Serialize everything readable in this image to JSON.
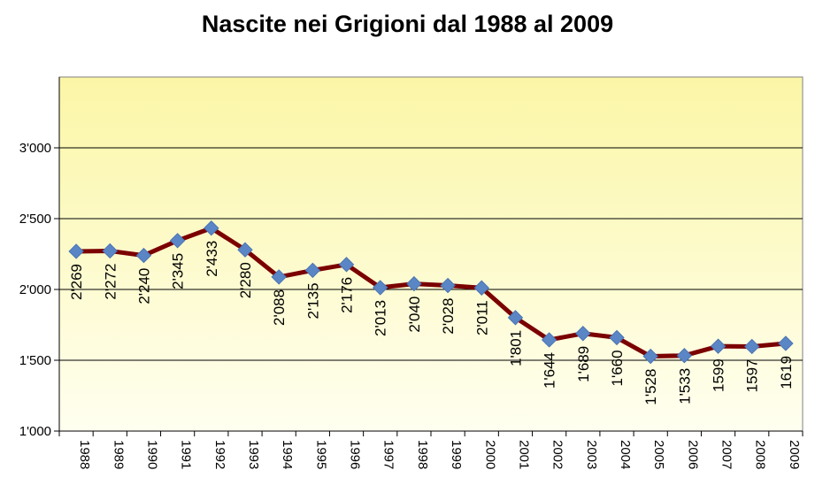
{
  "chart_data": {
    "type": "line",
    "title": "Nascite nei Grigioni dal 1988 al 2009",
    "xlabel": "",
    "ylabel": "",
    "x": [
      "1988",
      "1989",
      "1990",
      "1991",
      "1992",
      "1993",
      "1994",
      "1995",
      "1996",
      "1997",
      "1998",
      "1999",
      "2000",
      "2001",
      "2002",
      "2003",
      "2004",
      "2005",
      "2006",
      "2007",
      "2008",
      "2009"
    ],
    "series": [
      {
        "values": [
          2269,
          2272,
          2240,
          2345,
          2433,
          2280,
          2088,
          2135,
          2176,
          2013,
          2040,
          2028,
          2011,
          1801,
          1644,
          1689,
          1660,
          1528,
          1533,
          1599,
          1597,
          1619
        ],
        "data_labels": [
          "2'269",
          "2'272",
          "2'240",
          "2'345",
          "2'433",
          "2'280",
          "2'088",
          "2'135",
          "2'176",
          "2'013",
          "2'040",
          "2'028",
          "2'011",
          "1'801",
          "1'644",
          "1'689",
          "1'660",
          "1'528",
          "1'533",
          "1599",
          "1597",
          "1619"
        ]
      }
    ],
    "ylim": [
      1000,
      3500
    ],
    "yticks": [
      1000,
      1500,
      2000,
      2500,
      3000
    ],
    "ytick_labels": [
      "1'000",
      "1'500",
      "2'000",
      "2'500",
      "3'000"
    ],
    "grid": true,
    "colors": {
      "line": "#7b0000",
      "marker": "#5b86c6",
      "plot_top": "#fbf6a6",
      "plot_bottom": "#fffff0",
      "gridline": "#000000"
    }
  }
}
